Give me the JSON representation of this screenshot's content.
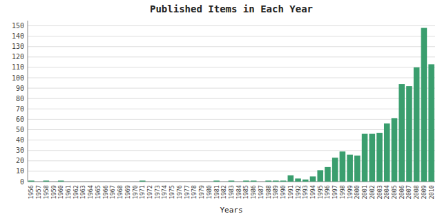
{
  "chart_data": {
    "type": "bar",
    "title": "Published Items in Each Year",
    "x_label": "Years",
    "categories": [
      "1956",
      "1957",
      "1958",
      "1959",
      "1960",
      "1961",
      "1962",
      "1963",
      "1964",
      "1965",
      "1966",
      "1967",
      "1968",
      "1969",
      "1970",
      "1971",
      "1972",
      "1973",
      "1974",
      "1975",
      "1976",
      "1977",
      "1978",
      "1979",
      "1980",
      "1981",
      "1982",
      "1983",
      "1984",
      "1985",
      "1986",
      "1987",
      "1988",
      "1989",
      "1990",
      "1991",
      "1992",
      "1993",
      "1994",
      "1995",
      "1996",
      "1997",
      "1998",
      "1999",
      "2000",
      "2001",
      "2002",
      "2003",
      "2004",
      "2005",
      "2006",
      "2007",
      "2008",
      "2009",
      "2010"
    ],
    "values": [
      1,
      0,
      1,
      0,
      1,
      0,
      0,
      0,
      0,
      0,
      0,
      0,
      0,
      0,
      0,
      1,
      0,
      0,
      0,
      0,
      0,
      0,
      0,
      0,
      0,
      1,
      0,
      1,
      0,
      1,
      1,
      0,
      1,
      1,
      1,
      6,
      3,
      2,
      5,
      11,
      14,
      23,
      29,
      26,
      25,
      46,
      46,
      47,
      56,
      61,
      94,
      92,
      110,
      148,
      113
    ],
    "color": "#3a9e6e",
    "ylim": [
      0,
      155
    ],
    "yticks": [
      0,
      10,
      20,
      30,
      40,
      50,
      60,
      70,
      80,
      90,
      100,
      110,
      120,
      130,
      140,
      150
    ],
    "grid": true
  }
}
